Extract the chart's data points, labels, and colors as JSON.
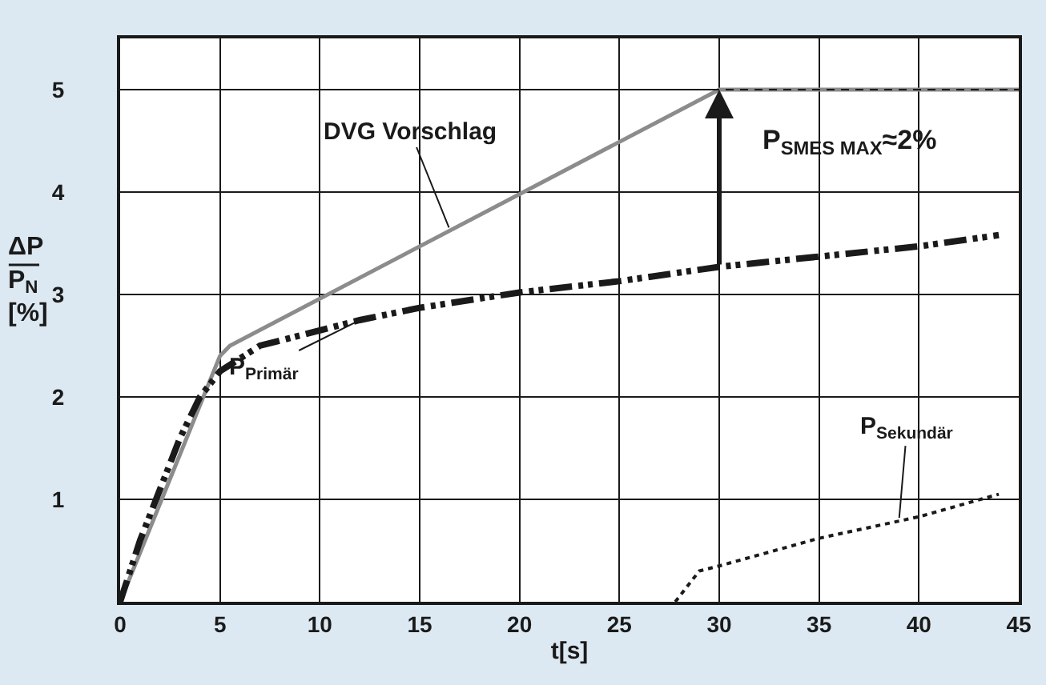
{
  "chart_data": {
    "type": "line",
    "xlabel": "t[s]",
    "ylabel": "ΔP P$_{N}$ [%]",
    "xlim": [
      0,
      45
    ],
    "xticks": [
      0,
      5,
      10,
      15,
      20,
      25,
      30,
      35,
      40,
      45
    ],
    "ylim": [
      0,
      5.5
    ],
    "yticks": [
      1,
      2,
      3,
      4,
      5
    ],
    "grid": true,
    "legend": false,
    "marker": "none",
    "series": [
      {
        "name": "DVG Vorschlag",
        "color": "#8c8c8c",
        "line_style": "solid",
        "x": [
          0,
          5,
          5.5,
          30,
          45
        ],
        "values": [
          0,
          2.4,
          2.5,
          5,
          5
        ]
      },
      {
        "name": "P$_{Primär}$",
        "color": "#1a1a1a",
        "line_style": "dashed",
        "x": [
          0,
          1,
          2,
          3,
          4,
          5,
          7,
          10,
          12,
          15,
          20,
          25,
          30,
          35,
          40,
          44
        ],
        "values": [
          0,
          0.6,
          1.1,
          1.6,
          2.0,
          2.25,
          2.5,
          2.65,
          2.75,
          2.87,
          3.02,
          3.13,
          3.27,
          3.37,
          3.47,
          3.58
        ]
      },
      {
        "name": "P$_{Sekundär}$",
        "color": "#1a1a1a",
        "line_style": "dotted",
        "x": [
          27.8,
          29,
          30,
          35,
          40,
          44
        ],
        "values": [
          0,
          0.3,
          0.35,
          0.62,
          0.83,
          1.05
        ]
      }
    ],
    "ref_lines": [
      {
        "axis": "y",
        "value": 5,
        "color": "#1a1a1a",
        "line_style": "dashed"
      }
    ],
    "annotations": [
      {
        "text": "P$_{SMES MAX}$≈2%",
        "x": 30,
        "y": 5
      }
    ]
  }
}
